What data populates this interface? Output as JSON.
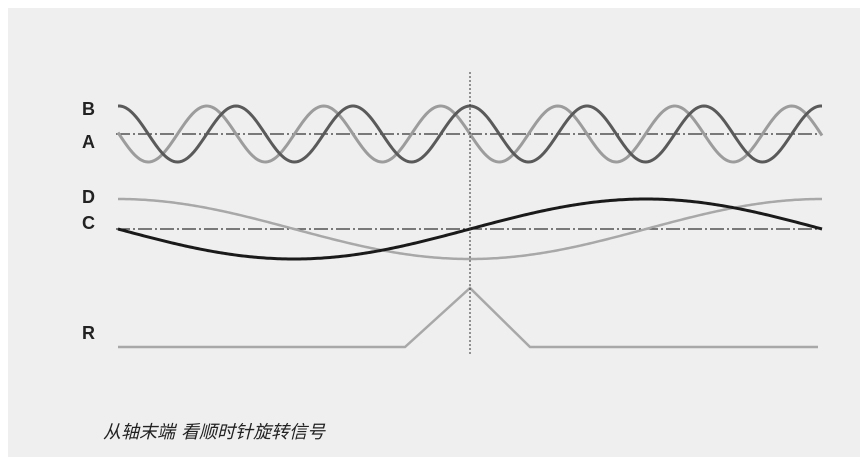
{
  "labels": {
    "B": "B",
    "A": "A",
    "D": "D",
    "C": "C",
    "R": "R"
  },
  "caption": {
    "part1": "从轴末端",
    "part2": "看顺时针旋转信号"
  },
  "colors": {
    "background": "#efefef",
    "dark_wave": "#5a5a5a",
    "light_wave": "#9c9c9c",
    "cos_wave": "#1a1a1a",
    "sin_wave": "#a8a8a8",
    "pulse": "#a8a8a8",
    "reference_line": "#333333",
    "marker_line": "#333333"
  }
}
